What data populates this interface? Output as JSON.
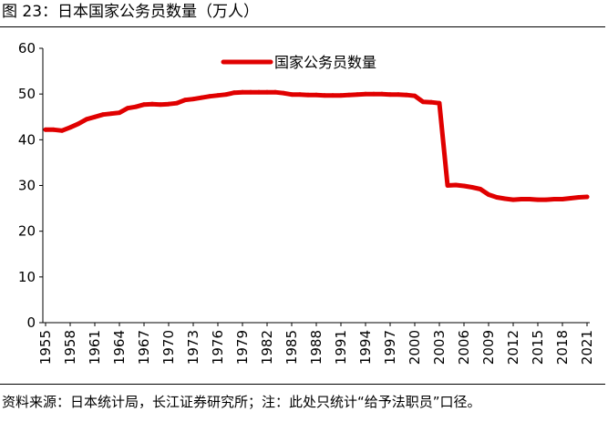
{
  "figure": {
    "title": "图 23：日本国家公务员数量（万人）",
    "source": "资料来源：日本统计局，长江证券研究所；注：此处只统计“给予法职员”口径。"
  },
  "colors": {
    "series": "#e00000",
    "axis": "#000000"
  },
  "chart_data": {
    "type": "line",
    "title": "",
    "xlabel": "",
    "ylabel": "",
    "ylim": [
      0,
      60
    ],
    "yticks": [
      0,
      10,
      20,
      30,
      40,
      50,
      60
    ],
    "xlim": [
      1955,
      2021
    ],
    "xticks": [
      1955,
      1958,
      1961,
      1964,
      1967,
      1970,
      1973,
      1976,
      1979,
      1982,
      1985,
      1988,
      1991,
      1994,
      1997,
      2000,
      2003,
      2006,
      2009,
      2012,
      2015,
      2018,
      2021
    ],
    "grid": false,
    "legend_position": "top-center",
    "series": [
      {
        "name": "国家公务员数量",
        "x": [
          1955,
          1956,
          1957,
          1958,
          1959,
          1960,
          1961,
          1962,
          1963,
          1964,
          1965,
          1966,
          1967,
          1968,
          1969,
          1970,
          1971,
          1972,
          1973,
          1974,
          1975,
          1976,
          1977,
          1978,
          1979,
          1980,
          1981,
          1982,
          1983,
          1984,
          1985,
          1986,
          1987,
          1988,
          1989,
          1990,
          1991,
          1992,
          1993,
          1994,
          1995,
          1996,
          1997,
          1998,
          1999,
          2000,
          2001,
          2002,
          2003,
          2004,
          2005,
          2006,
          2007,
          2008,
          2009,
          2010,
          2011,
          2012,
          2013,
          2014,
          2015,
          2016,
          2017,
          2018,
          2019,
          2020,
          2021
        ],
        "values": [
          42.2,
          42.2,
          42.0,
          42.7,
          43.5,
          44.5,
          45.0,
          45.5,
          45.7,
          45.9,
          46.9,
          47.2,
          47.7,
          47.8,
          47.7,
          47.8,
          48.0,
          48.7,
          48.9,
          49.2,
          49.5,
          49.7,
          49.9,
          50.3,
          50.4,
          50.4,
          50.4,
          50.4,
          50.4,
          50.2,
          49.9,
          49.9,
          49.8,
          49.8,
          49.7,
          49.7,
          49.7,
          49.8,
          49.9,
          50.0,
          50.0,
          50.0,
          49.9,
          49.9,
          49.8,
          49.6,
          48.3,
          48.2,
          48.0,
          30.0,
          30.1,
          29.9,
          29.6,
          29.2,
          28.0,
          27.4,
          27.1,
          26.9,
          27.0,
          27.0,
          26.9,
          26.9,
          27.0,
          27.0,
          27.2,
          27.4,
          27.5
        ]
      }
    ]
  }
}
